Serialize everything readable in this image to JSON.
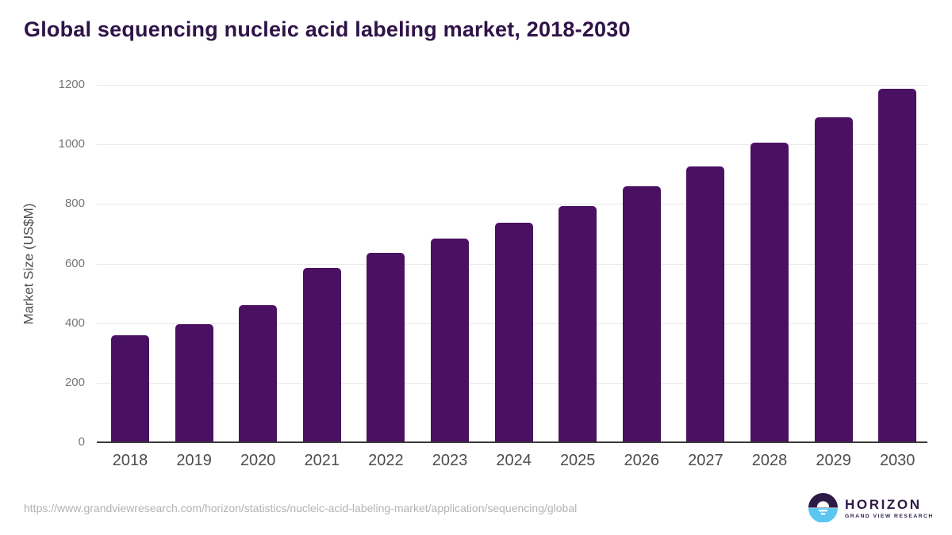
{
  "header": {
    "title": "Global sequencing nucleic acid labeling market, 2018-2030"
  },
  "chart_data": {
    "type": "bar",
    "title": "Global sequencing nucleic acid labeling market, 2018-2030",
    "categories": [
      "2018",
      "2019",
      "2020",
      "2021",
      "2022",
      "2023",
      "2024",
      "2025",
      "2026",
      "2027",
      "2028",
      "2029",
      "2030"
    ],
    "values": [
      360,
      396,
      460,
      585,
      636,
      684,
      737,
      794,
      859,
      927,
      1007,
      1091,
      1188
    ],
    "xlabel": "",
    "ylabel": "Market Size (US$M)",
    "ylim": [
      0,
      1200
    ],
    "yticks": [
      0,
      200,
      400,
      600,
      800,
      1000,
      1200
    ],
    "grid": "horizontal",
    "legend_position": "none",
    "bar_color": "#4a1062"
  },
  "footer": {
    "source_url": "https://www.grandviewresearch.com/horizon/statistics/nucleic-acid-labeling-market/application/sequencing/global",
    "logo": {
      "title": "HORIZON",
      "subtitle": "GRAND VIEW RESEARCH"
    }
  },
  "colors": {
    "title_text": "#2f1348",
    "bar_fill": "#4a1062",
    "axis_line": "#3a3a3a",
    "gridline": "#e8e8e8",
    "y_tick_text": "#767676",
    "x_tick_text": "#4d4d4d",
    "url_text": "#b3b3b3",
    "logo_purple": "#2d1b47",
    "logo_blue": "#5bc6f0"
  }
}
